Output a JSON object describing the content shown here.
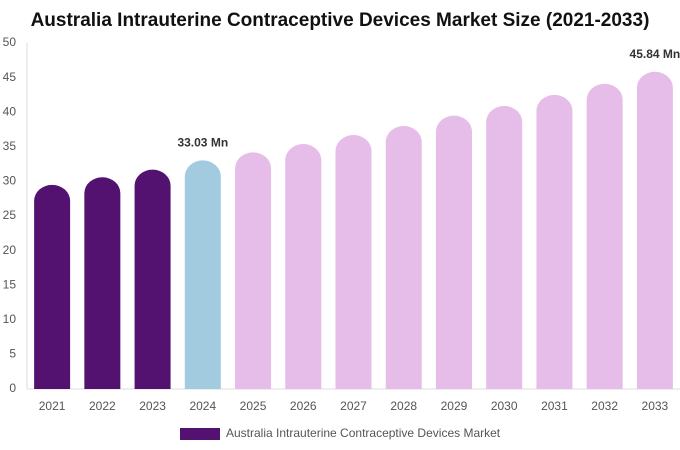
{
  "chart_data": {
    "type": "bar",
    "title": "Australia Intrauterine Contraceptive Devices Market Size (2021-2033)",
    "categories": [
      "2021",
      "2022",
      "2023",
      "2024",
      "2025",
      "2026",
      "2027",
      "2028",
      "2029",
      "2030",
      "2031",
      "2032",
      "2033"
    ],
    "series": [
      {
        "name": "Australia Intrauterine Contraceptive Devices Market",
        "color": "#541270",
        "values": [
          29.5,
          30.6,
          31.7,
          33.03,
          34.2,
          35.4,
          36.7,
          38.0,
          39.5,
          40.9,
          42.5,
          44.1,
          45.84
        ],
        "value_labels": [
          null,
          null,
          null,
          "33.03 Mn",
          null,
          null,
          null,
          null,
          null,
          null,
          null,
          null,
          "45.84 Mn"
        ]
      }
    ],
    "bar_colors": [
      "#541270",
      "#541270",
      "#541270",
      "#a3cbe0",
      "#e6bde8",
      "#e6bde8",
      "#e6bde8",
      "#e6bde8",
      "#e6bde8",
      "#e6bde8",
      "#e6bde8",
      "#e6bde8",
      "#e6bde8"
    ],
    "ylim": [
      0,
      50
    ],
    "yticks": [
      0,
      5,
      10,
      15,
      20,
      25,
      30,
      35,
      40,
      45,
      50
    ],
    "grid": false
  }
}
